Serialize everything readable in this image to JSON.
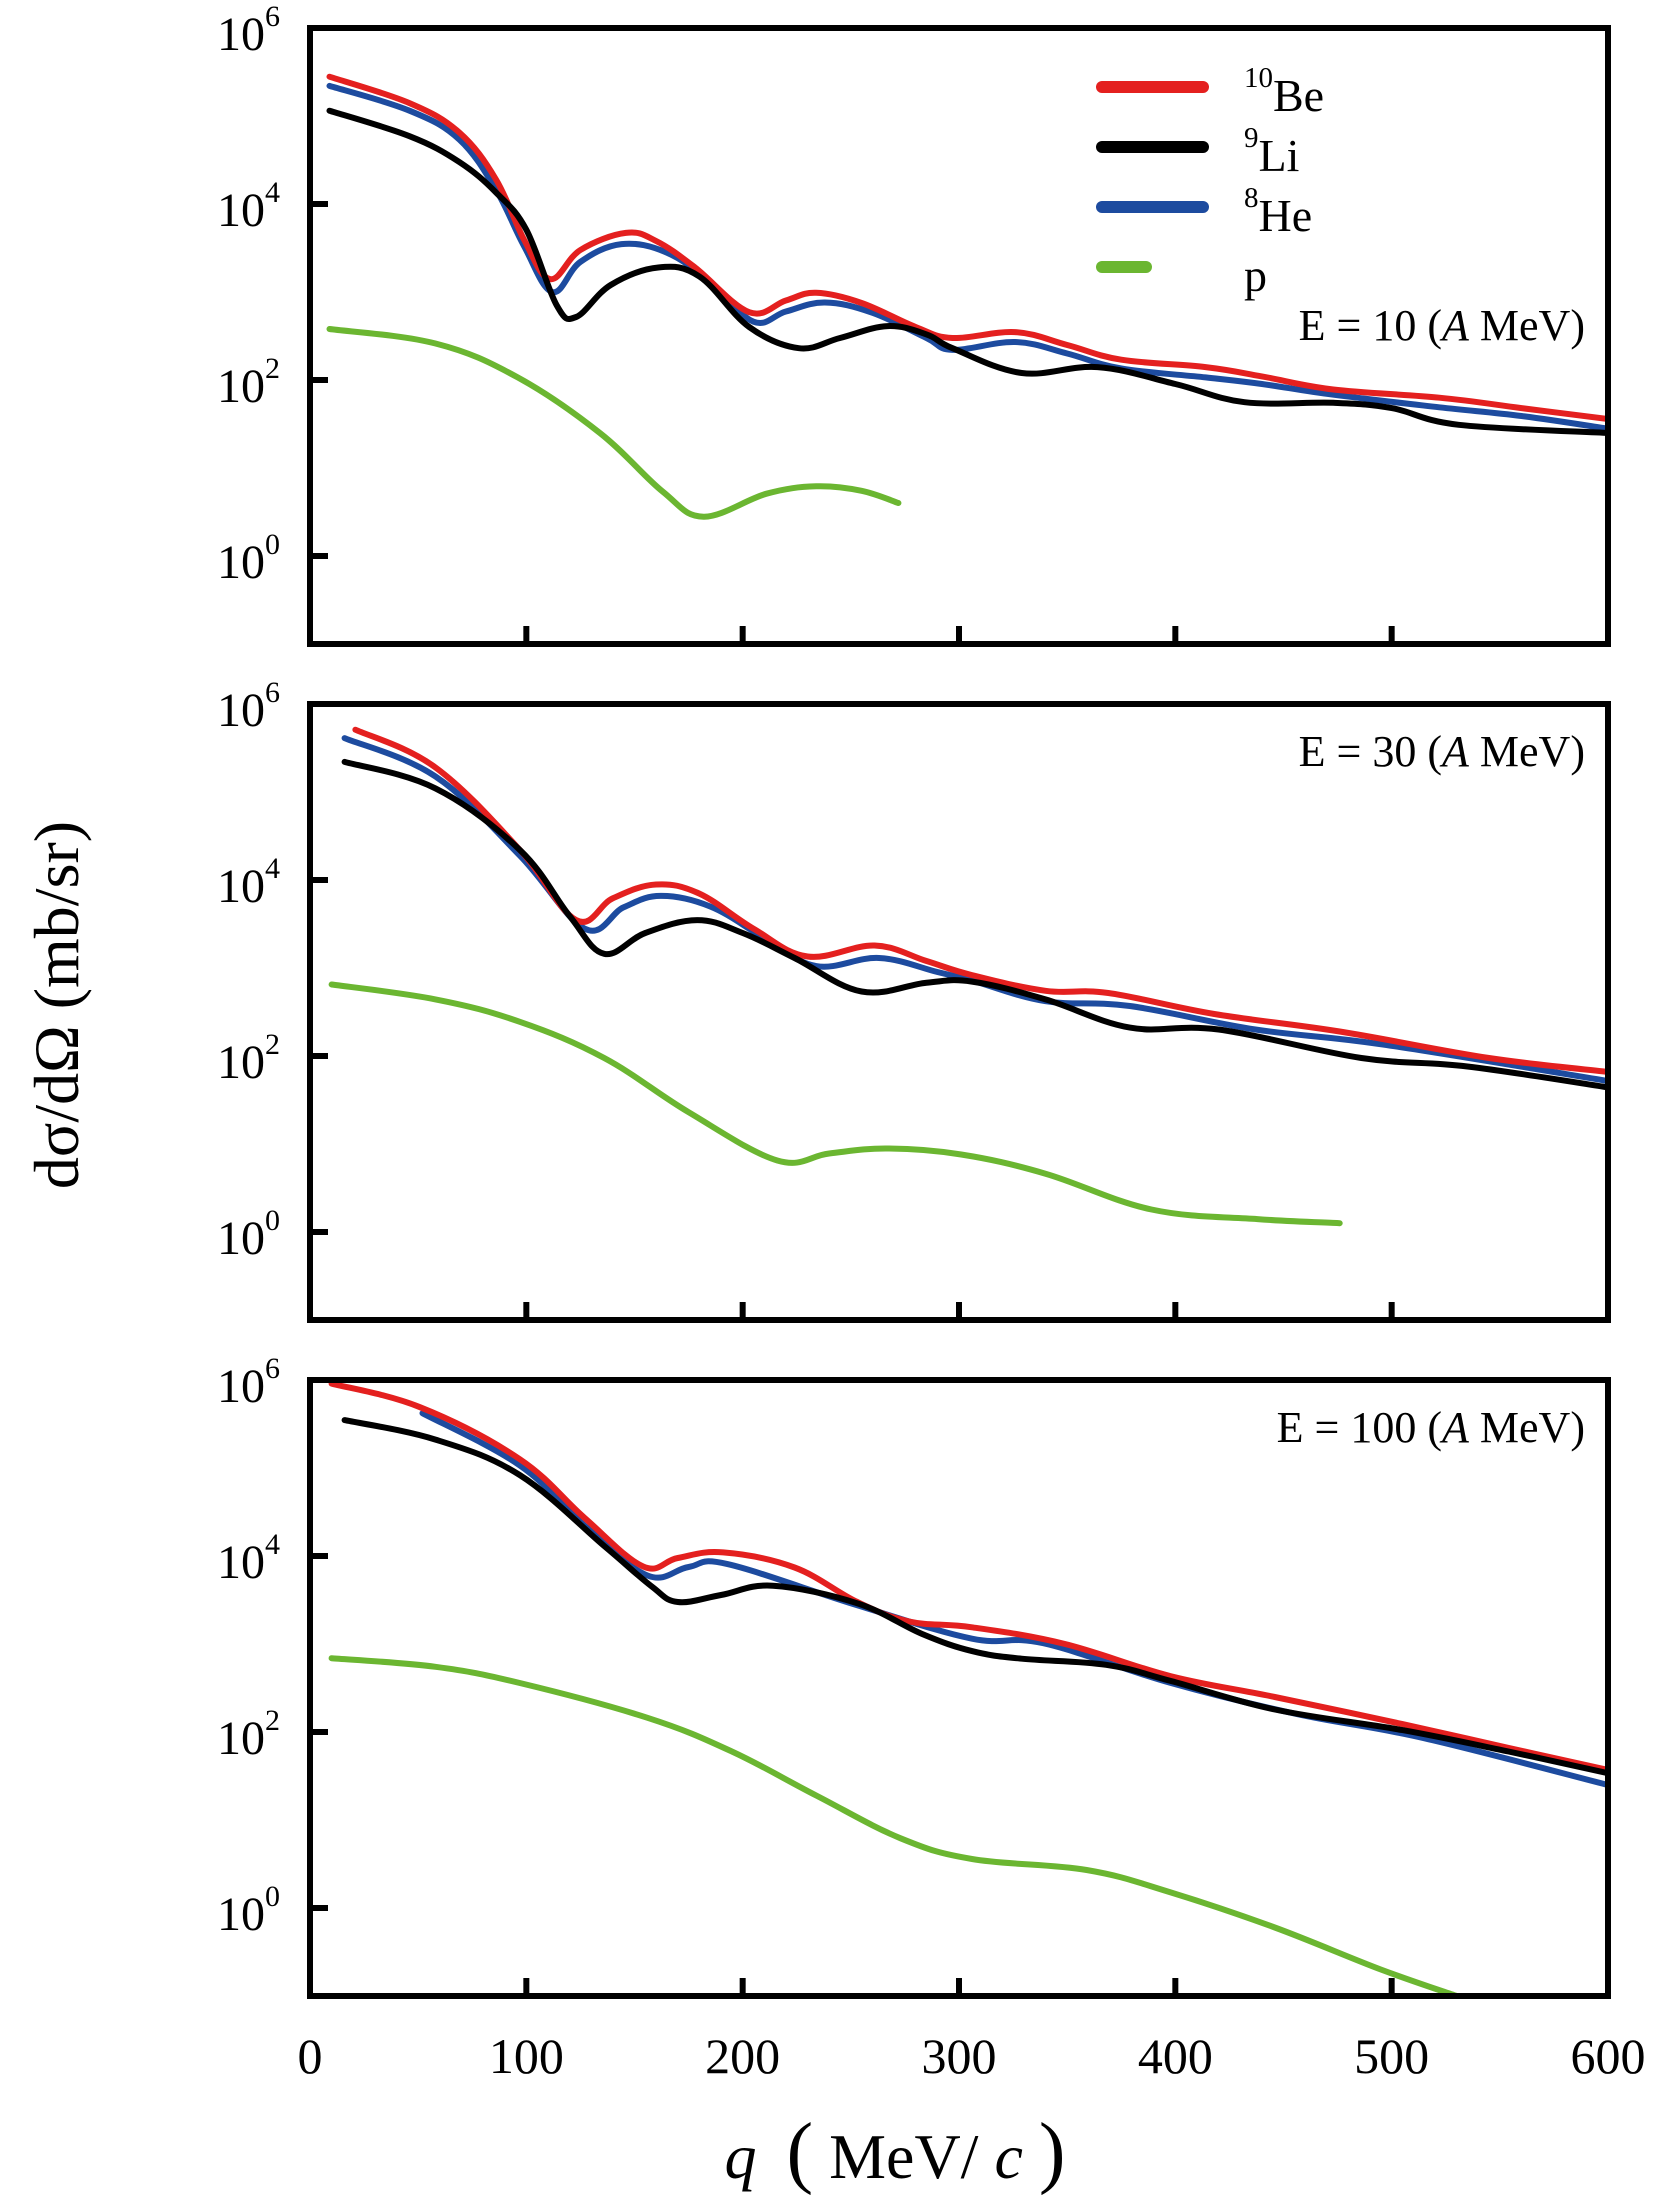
{
  "chart_data": {
    "type": "line",
    "title": "",
    "xlabel": "q (MeV/c)",
    "xlabel_parts": {
      "var": "q",
      "open": "(",
      "unit_main": "MeV/",
      "unit_var": "c",
      "close": ")"
    },
    "ylabel": "dσ/dΩ (mb/sr)",
    "xlim": [
      0,
      600
    ],
    "ylim": [
      0.1,
      1000000
    ],
    "yscale": "log",
    "x_ticks": [
      "0",
      "100",
      "200",
      "300",
      "400",
      "500",
      "600"
    ],
    "x_tick_values": [
      0,
      100,
      200,
      300,
      400,
      500,
      600
    ],
    "y_ticks": [
      {
        "base": "10",
        "exp": "0",
        "value": 1
      },
      {
        "base": "10",
        "exp": "2",
        "value": 100
      },
      {
        "base": "10",
        "exp": "4",
        "value": 10000
      },
      {
        "base": "10",
        "exp": "6",
        "value": 1000000
      }
    ],
    "grid": false,
    "legend": {
      "placement": "top-right of top panel",
      "entries": [
        {
          "mass": "10",
          "symbol": "Be",
          "series_key": "be10",
          "color": "#e4201f"
        },
        {
          "mass": "9",
          "symbol": "Li",
          "series_key": "li9",
          "color": "#000000"
        },
        {
          "mass": "8",
          "symbol": "He",
          "series_key": "he8",
          "color": "#1d4b9f"
        },
        {
          "mass": "",
          "symbol": "p",
          "series_key": "p",
          "color": "#6bb631"
        }
      ]
    },
    "panels": [
      {
        "annotation": {
          "prefix": "E = 10 (",
          "italic": "A",
          "suffix": " MeV)"
        },
        "energy_A_MeV": 10,
        "series": [
          {
            "key": "be10",
            "name": "10Be",
            "color": "#e4201f",
            "points": [
              [
                9,
                280000
              ],
              [
                46,
                140000
              ],
              [
                69,
                65000
              ],
              [
                86,
                19000
              ],
              [
                99,
                3900
              ],
              [
                111,
                1400
              ],
              [
                125,
                3000
              ],
              [
                146,
                4700
              ],
              [
                160,
                3800
              ],
              [
                178,
                1900
              ],
              [
                203,
                590
              ],
              [
                220,
                800
              ],
              [
                234,
                980
              ],
              [
                255,
                750
              ],
              [
                280,
                400
              ],
              [
                297,
                300
              ],
              [
                326,
                350
              ],
              [
                350,
                250
              ],
              [
                375,
                170
              ],
              [
                414,
                140
              ],
              [
                440,
                110
              ],
              [
                473,
                78
              ],
              [
                522,
                63
              ],
              [
                560,
                48
              ],
              [
                600,
                36
              ]
            ]
          },
          {
            "key": "li9",
            "name": "9Li",
            "color": "#000000",
            "points": [
              [
                9,
                115000
              ],
              [
                46,
                59000
              ],
              [
                69,
                30000
              ],
              [
                86,
                13500
              ],
              [
                100,
                5100
              ],
              [
                114,
                710
              ],
              [
                123,
                520
              ],
              [
                139,
                1200
              ],
              [
                161,
                1900
              ],
              [
                180,
                1500
              ],
              [
                203,
                400
              ],
              [
                226,
                230
              ],
              [
                245,
                300
              ],
              [
                267,
                410
              ],
              [
                285,
                330
              ],
              [
                297,
                230
              ],
              [
                329,
                120
              ],
              [
                364,
                140
              ],
              [
                400,
                90
              ],
              [
                432,
                56
              ],
              [
                473,
                55
              ],
              [
                500,
                48
              ],
              [
                531,
                31
              ],
              [
                600,
                25
              ]
            ]
          },
          {
            "key": "he8",
            "name": "8He",
            "color": "#1d4b9f",
            "points": [
              [
                9,
                220000
              ],
              [
                46,
                115000
              ],
              [
                69,
                54000
              ],
              [
                86,
                14500
              ],
              [
                99,
                3300
              ],
              [
                112,
                1000
              ],
              [
                125,
                2200
              ],
              [
                144,
                3500
              ],
              [
                165,
                2800
              ],
              [
                185,
                1300
              ],
              [
                205,
                460
              ],
              [
                220,
                600
              ],
              [
                238,
                760
              ],
              [
                260,
                580
              ],
              [
                285,
                300
              ],
              [
                297,
                220
              ],
              [
                326,
                270
              ],
              [
                350,
                200
              ],
              [
                375,
                135
              ],
              [
                414,
                107
              ],
              [
                440,
                90
              ],
              [
                473,
                68
              ],
              [
                522,
                49
              ],
              [
                560,
                39
              ],
              [
                600,
                28
              ]
            ]
          },
          {
            "key": "p",
            "name": "p",
            "color": "#6bb631",
            "points": [
              [
                9,
                380
              ],
              [
                58,
                260
              ],
              [
                96,
                107
              ],
              [
                134,
                25
              ],
              [
                163,
                5.4
              ],
              [
                182,
                2.8
              ],
              [
                211,
                5.1
              ],
              [
                234,
                6.2
              ],
              [
                255,
                5.5
              ],
              [
                272,
                4.0
              ]
            ]
          }
        ]
      },
      {
        "annotation": {
          "prefix": "E = 30 (",
          "italic": "A",
          "suffix": " MeV)"
        },
        "energy_A_MeV": 30,
        "series": [
          {
            "key": "be10",
            "name": "10Be",
            "color": "#e4201f",
            "points": [
              [
                21,
                510000
              ],
              [
                58,
                190000
              ],
              [
                97,
                22000
              ],
              [
                123,
                3500
              ],
              [
                140,
                6200
              ],
              [
                160,
                8900
              ],
              [
                180,
                7000
              ],
              [
                205,
                2800
              ],
              [
                230,
                1350
              ],
              [
                261,
                1800
              ],
              [
                285,
                1200
              ],
              [
                306,
                830
              ],
              [
                340,
                550
              ],
              [
                369,
                520
              ],
              [
                418,
                300
              ],
              [
                476,
                190
              ],
              [
                545,
                95
              ],
              [
                600,
                66
              ]
            ]
          },
          {
            "key": "li9",
            "name": "9Li",
            "color": "#000000",
            "points": [
              [
                16,
                220000
              ],
              [
                58,
                110000
              ],
              [
                97,
                22000
              ],
              [
                120,
                3900
              ],
              [
                136,
                1450
              ],
              [
                155,
                2500
              ],
              [
                179,
                3500
              ],
              [
                200,
                2500
              ],
              [
                224,
                1300
              ],
              [
                255,
                540
              ],
              [
                285,
                680
              ],
              [
                306,
                700
              ],
              [
                340,
                440
              ],
              [
                379,
                210
              ],
              [
                420,
                200
              ],
              [
                486,
                95
              ],
              [
                535,
                76
              ],
              [
                600,
                44
              ]
            ]
          },
          {
            "key": "he8",
            "name": "8He",
            "color": "#1d4b9f",
            "points": [
              [
                16,
                410000
              ],
              [
                58,
                150000
              ],
              [
                97,
                19000
              ],
              [
                127,
                2800
              ],
              [
                145,
                4900
              ],
              [
                162,
                6600
              ],
              [
                185,
                5000
              ],
              [
                210,
                2200
              ],
              [
                234,
                1050
              ],
              [
                263,
                1300
              ],
              [
                290,
                900
              ],
              [
                306,
                720
              ],
              [
                340,
                420
              ],
              [
                379,
                370
              ],
              [
                437,
                200
              ],
              [
                496,
                135
              ],
              [
                600,
                52
              ]
            ]
          },
          {
            "key": "p",
            "name": "p",
            "color": "#6bb631",
            "points": [
              [
                10,
                650
              ],
              [
                58,
                440
              ],
              [
                97,
                245
              ],
              [
                136,
                95
              ],
              [
                175,
                23
              ],
              [
                216,
                6.5
              ],
              [
                240,
                7.8
              ],
              [
                267,
                8.9
              ],
              [
                301,
                7.6
              ],
              [
                340,
                4.6
              ],
              [
                389,
                1.8
              ],
              [
                438,
                1.4
              ],
              [
                476,
                1.26
              ]
            ]
          }
        ]
      },
      {
        "annotation": {
          "prefix": "E = 100 (",
          "italic": "A",
          "suffix": " MeV)"
        },
        "energy_A_MeV": 100,
        "series": [
          {
            "key": "be10",
            "name": "10Be",
            "color": "#e4201f",
            "points": [
              [
                10,
                910000
              ],
              [
                51,
                490000
              ],
              [
                97,
                126000
              ],
              [
                127,
                27000
              ],
              [
                154,
                7600
              ],
              [
                170,
                9500
              ],
              [
                191,
                11000
              ],
              [
                224,
                7400
              ],
              [
                253,
                3000
              ],
              [
                277,
                1800
              ],
              [
                306,
                1550
              ],
              [
                349,
                1000
              ],
              [
                398,
                430
              ],
              [
                446,
                250
              ],
              [
                505,
                123
              ],
              [
                554,
                66
              ],
              [
                600,
                37
              ]
            ]
          },
          {
            "key": "li9",
            "name": "9Li",
            "color": "#000000",
            "points": [
              [
                16,
                350000
              ],
              [
                58,
                210000
              ],
              [
                97,
                83000
              ],
              [
                136,
                13000
              ],
              [
                158,
                4500
              ],
              [
                170,
                3000
              ],
              [
                190,
                3600
              ],
              [
                214,
                4600
              ],
              [
                253,
                2900
              ],
              [
                283,
                1300
              ],
              [
                306,
                830
              ],
              [
                329,
                680
              ],
              [
                368,
                580
              ],
              [
                398,
                380
              ],
              [
                446,
                180
              ],
              [
                505,
                105
              ],
              [
                554,
                60
              ],
              [
                600,
                34
              ]
            ]
          },
          {
            "key": "he8",
            "name": "8He",
            "color": "#1d4b9f",
            "points": [
              [
                52,
                420000
              ],
              [
                97,
                107000
              ],
              [
                127,
                22000
              ],
              [
                156,
                6000
              ],
              [
                175,
                7500
              ],
              [
                193,
                8100
              ],
              [
                253,
                2750
              ],
              [
                306,
                1150
              ],
              [
                339,
                1020
              ],
              [
                398,
                360
              ],
              [
                456,
                160
              ],
              [
                515,
                85
              ],
              [
                600,
                25
              ]
            ]
          },
          {
            "key": "p",
            "name": "p",
            "color": "#6bb631",
            "points": [
              [
                10,
                690
              ],
              [
                58,
                550
              ],
              [
                97,
                360
              ],
              [
                156,
                145
              ],
              [
                195,
                60
              ],
              [
                234,
                19
              ],
              [
                273,
                6.2
              ],
              [
                306,
                3.6
              ],
              [
                359,
                2.7
              ],
              [
                398,
                1.5
              ],
              [
                446,
                0.6
              ],
              [
                495,
                0.2
              ],
              [
                530,
                0.1
              ]
            ]
          }
        ]
      }
    ]
  }
}
